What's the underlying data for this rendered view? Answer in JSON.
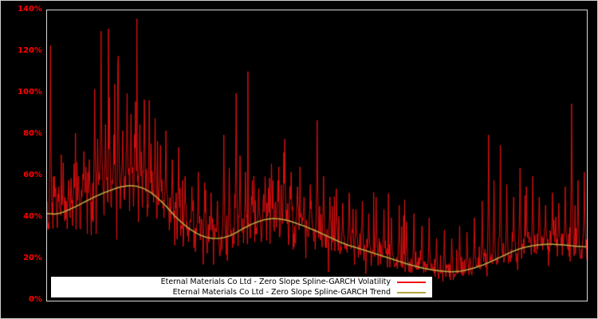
{
  "figure": {
    "background": "#000000",
    "plot_background": "#000000",
    "outer_border_color": "#cfcfcf",
    "axis_color": "#d9d9d9",
    "tick_label_color": "#ff0000"
  },
  "legend": {
    "background": "#ffffff",
    "border_color": "#000000",
    "position": "bottom-center"
  },
  "chart_data": {
    "type": "line",
    "title": "",
    "xlabel": "",
    "ylabel": "",
    "ylim": [
      0,
      1.4
    ],
    "yticks": [
      "0%",
      "20%",
      "40%",
      "60%",
      "80%",
      "100%",
      "120%",
      "140%"
    ],
    "xticks": [],
    "grid": false,
    "legend_position": "bottom-center",
    "series": [
      {
        "name": "Eternal Materials Co Ltd - Zero Slope Spline-GARCH Volatility",
        "color": "#ee1111",
        "style": "noisy"
      },
      {
        "name": "Eternal Materials Co Ltd - Zero Slope Spline-GARCH Trend",
        "color": "#b5a642",
        "style": "smooth"
      }
    ],
    "trend_points": [
      [
        0.0,
        0.42
      ],
      [
        0.02,
        0.42
      ],
      [
        0.05,
        0.45
      ],
      [
        0.08,
        0.49
      ],
      [
        0.11,
        0.525
      ],
      [
        0.14,
        0.55
      ],
      [
        0.165,
        0.552
      ],
      [
        0.19,
        0.525
      ],
      [
        0.215,
        0.47
      ],
      [
        0.24,
        0.4
      ],
      [
        0.265,
        0.345
      ],
      [
        0.29,
        0.31
      ],
      [
        0.315,
        0.3
      ],
      [
        0.34,
        0.315
      ],
      [
        0.365,
        0.35
      ],
      [
        0.39,
        0.38
      ],
      [
        0.415,
        0.395
      ],
      [
        0.44,
        0.39
      ],
      [
        0.465,
        0.37
      ],
      [
        0.49,
        0.345
      ],
      [
        0.52,
        0.31
      ],
      [
        0.55,
        0.275
      ],
      [
        0.58,
        0.25
      ],
      [
        0.61,
        0.225
      ],
      [
        0.64,
        0.2
      ],
      [
        0.67,
        0.175
      ],
      [
        0.7,
        0.155
      ],
      [
        0.73,
        0.143
      ],
      [
        0.755,
        0.14
      ],
      [
        0.78,
        0.15
      ],
      [
        0.81,
        0.175
      ],
      [
        0.84,
        0.21
      ],
      [
        0.87,
        0.245
      ],
      [
        0.9,
        0.265
      ],
      [
        0.93,
        0.272
      ],
      [
        0.96,
        0.268
      ],
      [
        0.98,
        0.262
      ],
      [
        1.0,
        0.26
      ]
    ],
    "spikes": [
      [
        0.006,
        1.23
      ],
      [
        0.014,
        0.6
      ],
      [
        0.022,
        0.55
      ],
      [
        0.03,
        0.62
      ],
      [
        0.04,
        0.58
      ],
      [
        0.05,
        0.66
      ],
      [
        0.058,
        0.6
      ],
      [
        0.068,
        0.72
      ],
      [
        0.078,
        0.68
      ],
      [
        0.088,
        1.02
      ],
      [
        0.094,
        0.78
      ],
      [
        0.1,
        1.3
      ],
      [
        0.108,
        0.85
      ],
      [
        0.116,
        0.98
      ],
      [
        0.124,
        0.8
      ],
      [
        0.132,
        1.18
      ],
      [
        0.14,
        0.82
      ],
      [
        0.148,
        1.0
      ],
      [
        0.156,
        0.9
      ],
      [
        0.164,
        0.96
      ],
      [
        0.172,
        0.85
      ],
      [
        0.18,
        0.97
      ],
      [
        0.19,
        0.78
      ],
      [
        0.2,
        0.88
      ],
      [
        0.21,
        0.75
      ],
      [
        0.22,
        0.82
      ],
      [
        0.232,
        0.68
      ],
      [
        0.244,
        0.74
      ],
      [
        0.256,
        0.6
      ],
      [
        0.268,
        0.55
      ],
      [
        0.28,
        0.62
      ],
      [
        0.292,
        0.57
      ],
      [
        0.304,
        0.52
      ],
      [
        0.316,
        0.48
      ],
      [
        0.328,
        0.8
      ],
      [
        0.338,
        0.64
      ],
      [
        0.35,
        1.0
      ],
      [
        0.358,
        0.7
      ],
      [
        0.368,
        0.62
      ],
      [
        0.38,
        0.58
      ],
      [
        0.392,
        0.54
      ],
      [
        0.404,
        0.6
      ],
      [
        0.416,
        0.66
      ],
      [
        0.428,
        0.58
      ],
      [
        0.44,
        0.78
      ],
      [
        0.452,
        0.62
      ],
      [
        0.464,
        0.55
      ],
      [
        0.476,
        0.5
      ],
      [
        0.488,
        0.56
      ],
      [
        0.5,
        0.87
      ],
      [
        0.512,
        0.6
      ],
      [
        0.524,
        0.5
      ],
      [
        0.536,
        0.54
      ],
      [
        0.548,
        0.47
      ],
      [
        0.56,
        0.52
      ],
      [
        0.572,
        0.44
      ],
      [
        0.584,
        0.48
      ],
      [
        0.596,
        0.42
      ],
      [
        0.61,
        0.5
      ],
      [
        0.624,
        0.44
      ],
      [
        0.638,
        0.4
      ],
      [
        0.652,
        0.46
      ],
      [
        0.666,
        0.38
      ],
      [
        0.68,
        0.42
      ],
      [
        0.694,
        0.36
      ],
      [
        0.708,
        0.4
      ],
      [
        0.722,
        0.3
      ],
      [
        0.736,
        0.34
      ],
      [
        0.75,
        0.3
      ],
      [
        0.764,
        0.36
      ],
      [
        0.778,
        0.33
      ],
      [
        0.792,
        0.4
      ],
      [
        0.806,
        0.48
      ],
      [
        0.818,
        0.8
      ],
      [
        0.828,
        0.58
      ],
      [
        0.84,
        0.75
      ],
      [
        0.852,
        0.56
      ],
      [
        0.864,
        0.5
      ],
      [
        0.876,
        0.64
      ],
      [
        0.888,
        0.55
      ],
      [
        0.9,
        0.6
      ],
      [
        0.912,
        0.5
      ],
      [
        0.924,
        0.46
      ],
      [
        0.936,
        0.52
      ],
      [
        0.948,
        0.47
      ],
      [
        0.96,
        0.55
      ],
      [
        0.972,
        0.95
      ],
      [
        0.984,
        0.58
      ],
      [
        0.995,
        0.62
      ]
    ],
    "noise": {
      "seed": 1337,
      "points": 1100,
      "sigma": 0.19,
      "jump_prob": 0.02
    }
  }
}
